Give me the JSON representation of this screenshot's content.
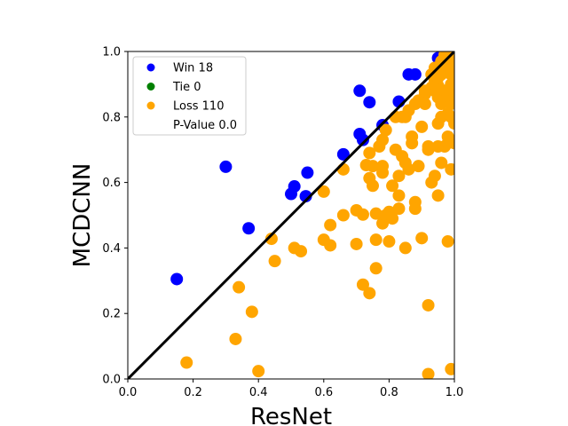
{
  "chart_data": {
    "type": "scatter",
    "xlabel": "ResNet",
    "ylabel": "MCDCNN",
    "xlim": [
      0,
      1
    ],
    "ylim": [
      0,
      1
    ],
    "xticks": [
      "0.0",
      "0.2",
      "0.4",
      "0.6",
      "0.8",
      "1.0"
    ],
    "yticks": [
      "0.0",
      "0.2",
      "0.4",
      "0.6",
      "0.8",
      "1.0"
    ],
    "grid": false,
    "diagonal": {
      "from": [
        0,
        0
      ],
      "to": [
        1,
        1
      ],
      "color": "#000000"
    },
    "legend": {
      "placement": "upper-left",
      "entries": [
        {
          "label": "Win 18",
          "color": "#0000ff",
          "marker": true
        },
        {
          "label": "Tie 0",
          "color": "#008000",
          "marker": true
        },
        {
          "label": "Loss 110",
          "color": "#ffa500",
          "marker": true
        },
        {
          "label": "P-Value 0.0",
          "color": "",
          "marker": false
        }
      ]
    },
    "series": [
      {
        "color": "#0000ff",
        "points": [
          [
            0.15,
            0.305
          ],
          [
            0.3,
            0.648
          ],
          [
            0.37,
            0.46
          ],
          [
            0.5,
            0.565
          ],
          [
            0.51,
            0.588
          ],
          [
            0.545,
            0.558
          ],
          [
            0.55,
            0.63
          ],
          [
            0.66,
            0.686
          ],
          [
            0.71,
            0.88
          ],
          [
            0.71,
            0.748
          ],
          [
            0.72,
            0.73
          ],
          [
            0.74,
            0.845
          ],
          [
            0.78,
            0.775
          ],
          [
            0.83,
            0.847
          ],
          [
            0.86,
            0.93
          ],
          [
            0.88,
            0.93
          ],
          [
            0.95,
            0.98
          ],
          [
            0.98,
            0.99
          ]
        ]
      },
      {
        "color": "#008000",
        "points": []
      },
      {
        "color": "#ffa500",
        "points": [
          [
            0.18,
            0.05
          ],
          [
            0.34,
            0.28
          ],
          [
            0.33,
            0.122
          ],
          [
            0.38,
            0.205
          ],
          [
            0.4,
            0.024
          ],
          [
            0.44,
            0.428
          ],
          [
            0.45,
            0.36
          ],
          [
            0.51,
            0.4
          ],
          [
            0.53,
            0.39
          ],
          [
            0.6,
            0.572
          ],
          [
            0.6,
            0.425
          ],
          [
            0.62,
            0.408
          ],
          [
            0.62,
            0.47
          ],
          [
            0.66,
            0.64
          ],
          [
            0.66,
            0.5
          ],
          [
            0.7,
            0.515
          ],
          [
            0.7,
            0.412
          ],
          [
            0.72,
            0.502
          ],
          [
            0.72,
            0.288
          ],
          [
            0.73,
            0.653
          ],
          [
            0.74,
            0.262
          ],
          [
            0.74,
            0.613
          ],
          [
            0.74,
            0.69
          ],
          [
            0.75,
            0.59
          ],
          [
            0.75,
            0.65
          ],
          [
            0.76,
            0.505
          ],
          [
            0.76,
            0.425
          ],
          [
            0.76,
            0.338
          ],
          [
            0.77,
            0.71
          ],
          [
            0.78,
            0.73
          ],
          [
            0.78,
            0.63
          ],
          [
            0.78,
            0.65
          ],
          [
            0.78,
            0.475
          ],
          [
            0.79,
            0.5
          ],
          [
            0.8,
            0.42
          ],
          [
            0.8,
            0.51
          ],
          [
            0.81,
            0.59
          ],
          [
            0.81,
            0.49
          ],
          [
            0.82,
            0.7
          ],
          [
            0.83,
            0.52
          ],
          [
            0.83,
            0.56
          ],
          [
            0.83,
            0.62
          ],
          [
            0.84,
            0.8
          ],
          [
            0.84,
            0.68
          ],
          [
            0.85,
            0.4
          ],
          [
            0.85,
            0.66
          ],
          [
            0.85,
            0.8
          ],
          [
            0.86,
            0.64
          ],
          [
            0.87,
            0.72
          ],
          [
            0.87,
            0.74
          ],
          [
            0.88,
            0.84
          ],
          [
            0.88,
            0.54
          ],
          [
            0.88,
            0.52
          ],
          [
            0.89,
            0.65
          ],
          [
            0.9,
            0.77
          ],
          [
            0.9,
            0.43
          ],
          [
            0.91,
            0.84
          ],
          [
            0.91,
            0.87
          ],
          [
            0.92,
            0.71
          ],
          [
            0.92,
            0.7
          ],
          [
            0.92,
            0.225
          ],
          [
            0.92,
            0.015
          ],
          [
            0.93,
            0.6
          ],
          [
            0.93,
            0.93
          ],
          [
            0.94,
            0.62
          ],
          [
            0.94,
            0.88
          ],
          [
            0.94,
            0.91
          ],
          [
            0.95,
            0.71
          ],
          [
            0.95,
            0.78
          ],
          [
            0.95,
            0.56
          ],
          [
            0.95,
            0.86
          ],
          [
            0.95,
            0.895
          ],
          [
            0.96,
            0.66
          ],
          [
            0.96,
            0.8
          ],
          [
            0.96,
            0.84
          ],
          [
            0.96,
            0.93
          ],
          [
            0.97,
            0.94
          ],
          [
            0.97,
            0.88
          ],
          [
            0.97,
            0.71
          ],
          [
            0.97,
            0.85
          ],
          [
            0.98,
            0.42
          ],
          [
            0.98,
            0.72
          ],
          [
            0.98,
            0.74
          ],
          [
            0.98,
            0.81
          ],
          [
            0.98,
            0.88
          ],
          [
            0.98,
            0.95
          ],
          [
            0.99,
            0.03
          ],
          [
            0.99,
            0.64
          ],
          [
            0.99,
            0.8
          ],
          [
            0.99,
            0.84
          ],
          [
            0.99,
            0.9
          ],
          [
            0.99,
            0.97
          ],
          [
            1.0,
            0.86
          ],
          [
            1.0,
            0.72
          ],
          [
            1.0,
            0.78
          ],
          [
            1.0,
            0.92
          ],
          [
            1.0,
            0.99
          ],
          [
            0.94,
            0.95
          ],
          [
            0.96,
            0.97
          ],
          [
            0.93,
            0.89
          ],
          [
            0.89,
            0.85
          ],
          [
            0.86,
            0.82
          ],
          [
            0.82,
            0.8
          ],
          [
            0.79,
            0.76
          ],
          [
            0.97,
            0.99
          ],
          [
            0.98,
            0.97
          ],
          [
            0.99,
            0.93
          ],
          [
            0.91,
            0.88
          ],
          [
            0.95,
            0.92
          ],
          [
            1.0,
            0.95
          ]
        ]
      }
    ]
  }
}
